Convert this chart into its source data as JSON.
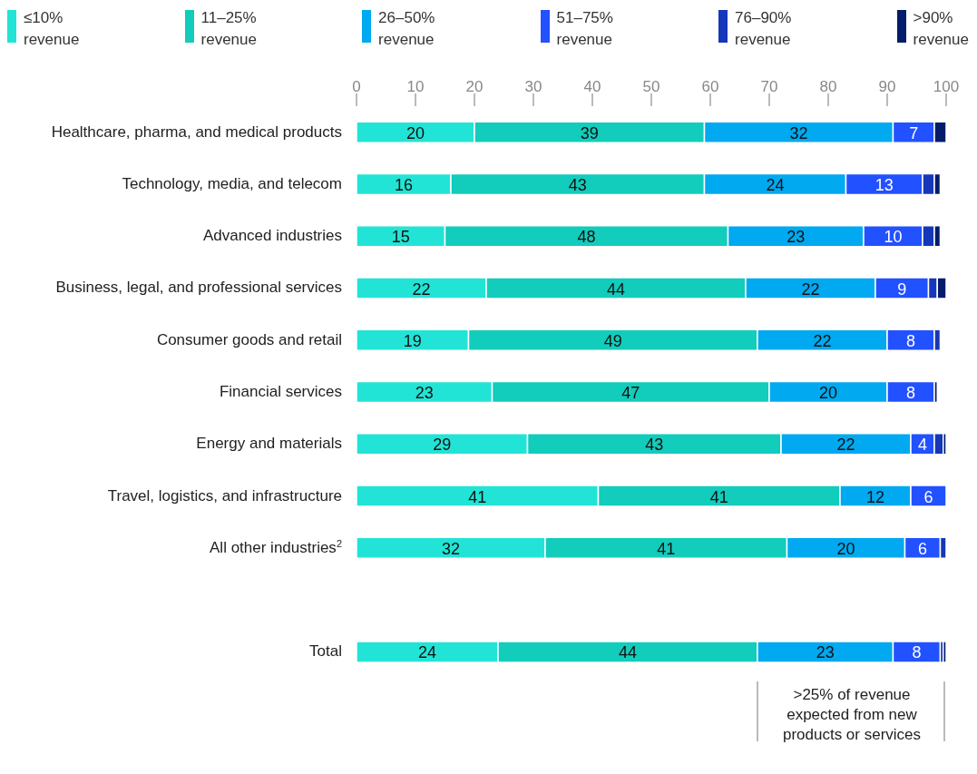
{
  "chart_data": {
    "type": "bar",
    "orientation": "horizontal",
    "stacked": true,
    "categories": [
      "Healthcare, pharma, and medical products",
      "Technology, media, and telecom",
      "Advanced industries",
      "Business, legal, and professional services",
      "Consumer goods and retail",
      "Financial services",
      "Energy and materials",
      "Travel, logistics, and infrastructure",
      "All other industries$^{2}$",
      null,
      "Total"
    ],
    "series": [
      {
        "name": "≤10% revenue",
        "color": "#22e4d6",
        "values": [
          20,
          16,
          15,
          22,
          19,
          23,
          29,
          41,
          32,
          null,
          24
        ],
        "value_labels": [
          "20",
          "16",
          "15",
          "22",
          "19",
          "23",
          "29",
          "41",
          "32",
          null,
          "24"
        ]
      },
      {
        "name": "11–25% revenue",
        "color": "#12ccbc",
        "values": [
          39,
          43,
          48,
          44,
          49,
          47,
          43,
          41,
          41,
          null,
          44
        ],
        "value_labels": [
          "39",
          "43",
          "48",
          "44",
          "49",
          "47",
          "43",
          "41",
          "41",
          null,
          "44"
        ]
      },
      {
        "name": "26–50% revenue",
        "color": "#00a9f0",
        "values": [
          32,
          24,
          23,
          22,
          22,
          20,
          22,
          12,
          20,
          null,
          23
        ],
        "value_labels": [
          "32",
          "24",
          "23",
          "22",
          "22",
          "20",
          "22",
          "12",
          "20",
          null,
          "23"
        ]
      },
      {
        "name": "51–75% revenue",
        "color": "#2251ff",
        "values": [
          7,
          13,
          10,
          9,
          8,
          8,
          4,
          6,
          6,
          null,
          8
        ],
        "value_labels": [
          "7",
          "13",
          "10",
          "9",
          "8",
          "8",
          "4",
          "6",
          "6",
          null,
          "8"
        ]
      },
      {
        "name": "76–90% revenue",
        "color": "#1537ba",
        "values": [
          null,
          2,
          2,
          1.5,
          1,
          null,
          1.5,
          null,
          1,
          null,
          0.5
        ]
      },
      {
        "name": ">90% revenue",
        "color": "#051c6b",
        "values": [
          2,
          1,
          1,
          1.5,
          null,
          0.5,
          0.5,
          null,
          null,
          null,
          0.5
        ]
      }
    ],
    "xlim": [
      0,
      100
    ],
    "xticks": [
      0,
      10,
      20,
      30,
      40,
      50,
      60,
      70,
      80,
      90,
      100
    ],
    "grid": false,
    "legend": "top",
    "annotations": [
      ">25% of revenue expected from new products or services"
    ]
  }
}
